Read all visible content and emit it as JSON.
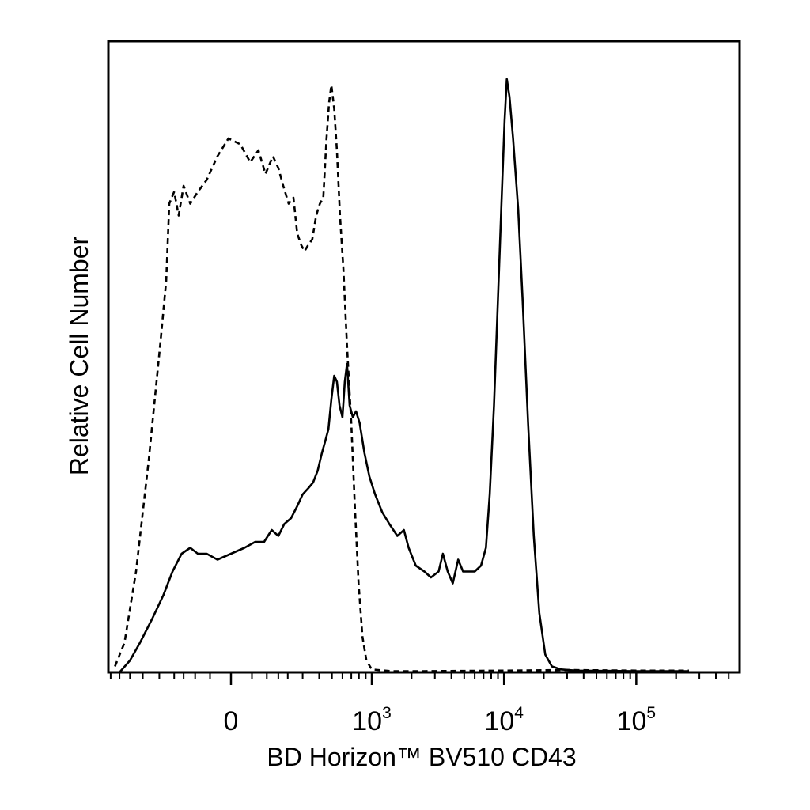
{
  "chart_data": {
    "type": "line",
    "chart_kind": "flow cytometry histogram",
    "xlabel": "BD Horizon™ BV510 CD43",
    "ylabel": "Relative Cell Number",
    "x_scale": "biexponential",
    "x_range": [
      -900,
      250000
    ],
    "y_range": [
      0,
      1
    ],
    "x_tick_labels": [
      {
        "value": 0,
        "label": "0",
        "exp": ""
      },
      {
        "value": 1000,
        "label": "10",
        "exp": "3"
      },
      {
        "value": 10000,
        "label": "10",
        "exp": "4"
      },
      {
        "value": 100000,
        "label": "10",
        "exp": "5"
      }
    ],
    "grid": false,
    "legend": "none",
    "series": [
      {
        "line_style": "dashed",
        "color": "#000000",
        "points": [
          [
            -900,
            0
          ],
          [
            -650,
            0.01
          ],
          [
            -550,
            0.05
          ],
          [
            -450,
            0.17
          ],
          [
            -360,
            0.36
          ],
          [
            -290,
            0.56
          ],
          [
            -250,
            0.66
          ],
          [
            -230,
            0.79
          ],
          [
            -200,
            0.81
          ],
          [
            -175,
            0.77
          ],
          [
            -150,
            0.82
          ],
          [
            -120,
            0.79
          ],
          [
            -90,
            0.81
          ],
          [
            -60,
            0.83
          ],
          [
            -30,
            0.87
          ],
          [
            -5,
            0.9
          ],
          [
            20,
            0.89
          ],
          [
            45,
            0.86
          ],
          [
            70,
            0.88
          ],
          [
            95,
            0.84
          ],
          [
            125,
            0.87
          ],
          [
            150,
            0.85
          ],
          [
            175,
            0.82
          ],
          [
            205,
            0.79
          ],
          [
            235,
            0.8
          ],
          [
            260,
            0.74
          ],
          [
            290,
            0.72
          ],
          [
            310,
            0.71
          ],
          [
            330,
            0.72
          ],
          [
            355,
            0.73
          ],
          [
            380,
            0.77
          ],
          [
            405,
            0.79
          ],
          [
            430,
            0.8
          ],
          [
            455,
            0.9
          ],
          [
            475,
            0.96
          ],
          [
            495,
            0.99
          ],
          [
            520,
            0.95
          ],
          [
            545,
            0.88
          ],
          [
            575,
            0.77
          ],
          [
            610,
            0.68
          ],
          [
            650,
            0.55
          ],
          [
            700,
            0.42
          ],
          [
            745,
            0.28
          ],
          [
            795,
            0.15
          ],
          [
            850,
            0.06
          ],
          [
            910,
            0.02
          ],
          [
            1000,
            0.005
          ],
          [
            1400,
            0.002
          ],
          [
            2500,
            0.002
          ],
          [
            10000,
            0.003
          ],
          [
            30000,
            0.004
          ],
          [
            100000,
            0.003
          ],
          [
            250000,
            0.003
          ]
        ]
      },
      {
        "line_style": "solid",
        "color": "#000000",
        "points": [
          [
            -600,
            0
          ],
          [
            -500,
            0.02
          ],
          [
            -420,
            0.05
          ],
          [
            -340,
            0.09
          ],
          [
            -270,
            0.13
          ],
          [
            -210,
            0.17
          ],
          [
            -160,
            0.2
          ],
          [
            -120,
            0.21
          ],
          [
            -90,
            0.2
          ],
          [
            -60,
            0.2
          ],
          [
            -30,
            0.19
          ],
          [
            0,
            0.2
          ],
          [
            30,
            0.21
          ],
          [
            60,
            0.22
          ],
          [
            90,
            0.22
          ],
          [
            120,
            0.24
          ],
          [
            150,
            0.23
          ],
          [
            180,
            0.25
          ],
          [
            220,
            0.26
          ],
          [
            260,
            0.28
          ],
          [
            300,
            0.3
          ],
          [
            330,
            0.31
          ],
          [
            360,
            0.32
          ],
          [
            390,
            0.34
          ],
          [
            420,
            0.37
          ],
          [
            445,
            0.39
          ],
          [
            470,
            0.41
          ],
          [
            495,
            0.46
          ],
          [
            520,
            0.5
          ],
          [
            545,
            0.49
          ],
          [
            570,
            0.45
          ],
          [
            600,
            0.43
          ],
          [
            625,
            0.49
          ],
          [
            650,
            0.52
          ],
          [
            680,
            0.45
          ],
          [
            720,
            0.43
          ],
          [
            760,
            0.44
          ],
          [
            810,
            0.42
          ],
          [
            880,
            0.37
          ],
          [
            960,
            0.33
          ],
          [
            1060,
            0.3
          ],
          [
            1200,
            0.27
          ],
          [
            1360,
            0.25
          ],
          [
            1560,
            0.23
          ],
          [
            1750,
            0.24
          ],
          [
            1900,
            0.21
          ],
          [
            2150,
            0.18
          ],
          [
            2500,
            0.17
          ],
          [
            2800,
            0.16
          ],
          [
            3200,
            0.17
          ],
          [
            3450,
            0.2
          ],
          [
            3750,
            0.17
          ],
          [
            4100,
            0.15
          ],
          [
            4500,
            0.19
          ],
          [
            4900,
            0.17
          ],
          [
            5400,
            0.17
          ],
          [
            6000,
            0.17
          ],
          [
            6700,
            0.18
          ],
          [
            7300,
            0.21
          ],
          [
            7800,
            0.3
          ],
          [
            8400,
            0.45
          ],
          [
            9000,
            0.63
          ],
          [
            9600,
            0.8
          ],
          [
            10100,
            0.93
          ],
          [
            10500,
            1.0
          ],
          [
            11000,
            0.97
          ],
          [
            11700,
            0.9
          ],
          [
            12800,
            0.78
          ],
          [
            13800,
            0.63
          ],
          [
            15200,
            0.42
          ],
          [
            16800,
            0.23
          ],
          [
            18500,
            0.1
          ],
          [
            20500,
            0.03
          ],
          [
            23000,
            0.01
          ],
          [
            27000,
            0.005
          ],
          [
            35000,
            0.003
          ],
          [
            100000,
            0.002
          ],
          [
            250000,
            0.002
          ]
        ]
      }
    ]
  }
}
